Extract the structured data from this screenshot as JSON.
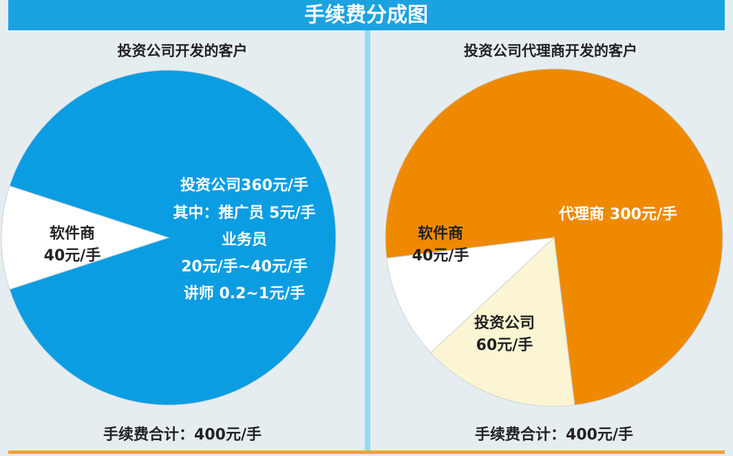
{
  "header": {
    "title": "手续费分成图"
  },
  "chart_data": [
    {
      "type": "pie",
      "title": "投资公司开发的客户",
      "categories": [
        "软件商",
        "投资公司"
      ],
      "values": [
        40,
        360
      ],
      "value_labels": [
        "40元/手",
        "360元/手"
      ],
      "colors": [
        "#ffffff",
        "#0b9de2"
      ],
      "annotations": [
        "其中：推广员 5元/手",
        "业务员",
        "20元/手~40元/手",
        "讲师 0.2~1元/手"
      ],
      "footnote": "手续费合计：400元/手"
    },
    {
      "type": "pie",
      "title": "投资公司代理商开发的客户",
      "categories": [
        "代理商",
        "软件商",
        "投资公司"
      ],
      "values": [
        300,
        40,
        60
      ],
      "value_labels": [
        "300元/手",
        "40元/手",
        "60元/手"
      ],
      "colors": [
        "#ef8a00",
        "#ffffff",
        "#fbf5d3"
      ],
      "footnote": "手续费合计：400元/手"
    }
  ]
}
